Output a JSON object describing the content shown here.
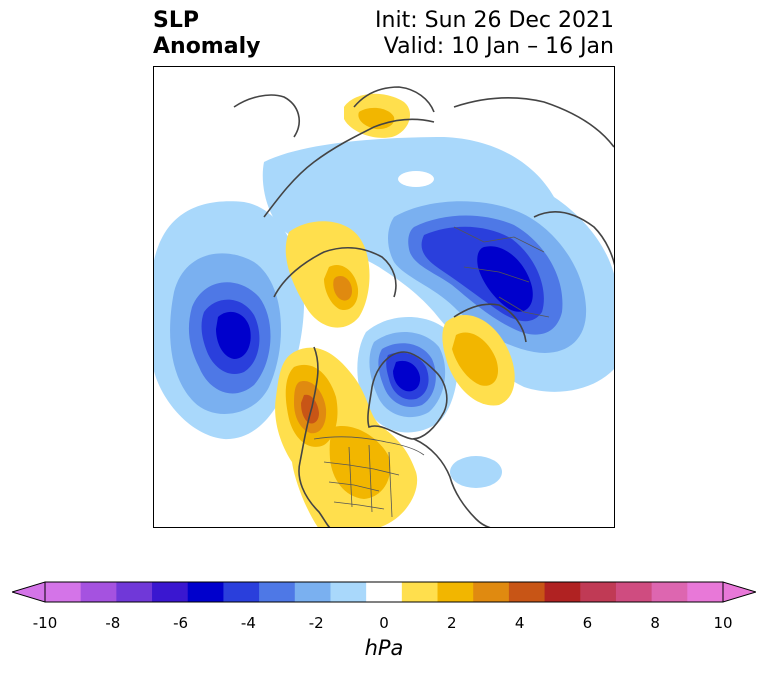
{
  "title": {
    "left_line1": "SLP",
    "left_line2": "Anomaly",
    "right_line1": "Init: Sun 26 Dec 2021",
    "right_line2": "Valid: 10 Jan – 16 Jan"
  },
  "colorbar": {
    "units": "hPa",
    "ticks": [
      "-10",
      "-8",
      "-6",
      "-4",
      "-2",
      "0",
      "2",
      "4",
      "6",
      "8",
      "10"
    ],
    "levels": [
      -10,
      -9,
      -8,
      -7,
      -6,
      -5,
      -4,
      -3,
      -2,
      -1,
      1,
      2,
      3,
      4,
      5,
      6,
      7,
      8,
      9,
      10
    ],
    "colors": [
      "#d474e8",
      "#a552e0",
      "#7038d8",
      "#3a17d0",
      "#0000cc",
      "#2a3fdc",
      "#4e78e6",
      "#7ab0f0",
      "#a9d8fb",
      "#ffffff",
      "#ffdf4d",
      "#f2b600",
      "#e08a10",
      "#c85516",
      "#b02222",
      "#c03a55",
      "#cf4c80",
      "#dd66b0",
      "#e878d8"
    ],
    "extend_left_color": "#d474e8",
    "extend_right_color": "#e878d8"
  },
  "map": {
    "projection": "north-polar-stereographic",
    "region": "North America, North Pacific, Arctic",
    "anomalies": [
      {
        "name": "north-pacific-low",
        "sign": "negative",
        "peak": "-6"
      },
      {
        "name": "hudson-bay-low",
        "sign": "negative",
        "peak": "-6"
      },
      {
        "name": "siberia-low",
        "sign": "negative",
        "peak": "-6"
      },
      {
        "name": "west-coast-high",
        "sign": "positive",
        "peak": "5"
      },
      {
        "name": "alaska-high",
        "sign": "positive",
        "peak": "3"
      },
      {
        "name": "north-atlantic-high",
        "sign": "positive",
        "peak": "3"
      },
      {
        "name": "conus-high",
        "sign": "positive",
        "peak": "2"
      },
      {
        "name": "scandinavia-high",
        "sign": "positive",
        "peak": "2"
      }
    ]
  }
}
